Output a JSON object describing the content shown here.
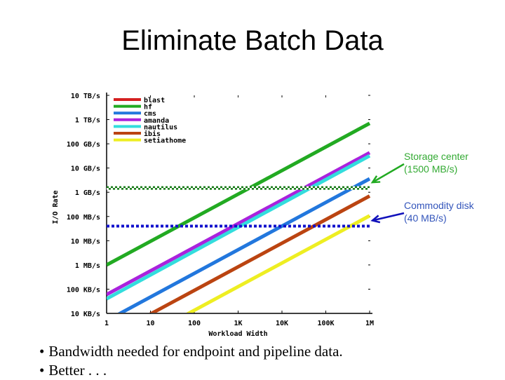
{
  "slide": {
    "title": "Eliminate Batch Data",
    "bullets": [
      "Bandwidth needed for endpoint and pipeline data.",
      "Better . . ."
    ]
  },
  "chart_data": {
    "type": "line",
    "title": "",
    "xlabel": "Workload Width",
    "ylabel": "I/O Rate",
    "xscale": "log",
    "yscale": "log",
    "x_ticks": [
      "1",
      "10",
      "100",
      "1K",
      "10K",
      "100K",
      "1M"
    ],
    "y_ticks": [
      "10 TB/s",
      "1 TB/s",
      "100 GB/s",
      "10 GB/s",
      "1 GB/s",
      "100 MB/s",
      "10 MB/s",
      "1 MB/s",
      "100 KB/s",
      "10 KB/s"
    ],
    "xlim": [
      1,
      1000000
    ],
    "ylim_bytes_per_s": [
      10000,
      10000000000000
    ],
    "legend_position": "upper-left",
    "grid": false,
    "x": [
      1,
      1000000
    ],
    "series": [
      {
        "name": "blast",
        "color": "#d42020",
        "values_bytes_per_s": [
          null,
          null
        ],
        "note": "not visible in plot area"
      },
      {
        "name": "hf",
        "color": "#22aa22",
        "values_bytes_per_s": [
          1000000,
          700000000000
        ]
      },
      {
        "name": "cms",
        "color": "#2277dd",
        "values_bytes_per_s": [
          5000,
          3600000000
        ]
      },
      {
        "name": "amanda",
        "color": "#aa22dd",
        "values_bytes_per_s": [
          60000,
          43000000000
        ]
      },
      {
        "name": "nautilus",
        "color": "#33dddd",
        "values_bytes_per_s": [
          40000,
          32000000000
        ]
      },
      {
        "name": "ibis",
        "color": "#bb4411",
        "values_bytes_per_s": [
          1000,
          700000000
        ]
      },
      {
        "name": "setiathome",
        "color": "#eeee22",
        "values_bytes_per_s": [
          150,
          107000000
        ]
      }
    ],
    "reference_lines": [
      {
        "label": "Storage center (1500 MB/s)",
        "value_bytes_per_s": 1500000000,
        "color": "#117711",
        "style": "checkered"
      },
      {
        "label": "Commodity disk (40 MB/s)",
        "value_bytes_per_s": 40000000,
        "color": "#1111cc",
        "style": "dotted"
      }
    ],
    "annotations": [
      {
        "line1": "Storage center",
        "line2": "(1500 MB/s)",
        "color": "#33aa33"
      },
      {
        "line1": "Commodity disk",
        "line2": "(40 MB/s)",
        "color": "#3355bb"
      }
    ]
  }
}
